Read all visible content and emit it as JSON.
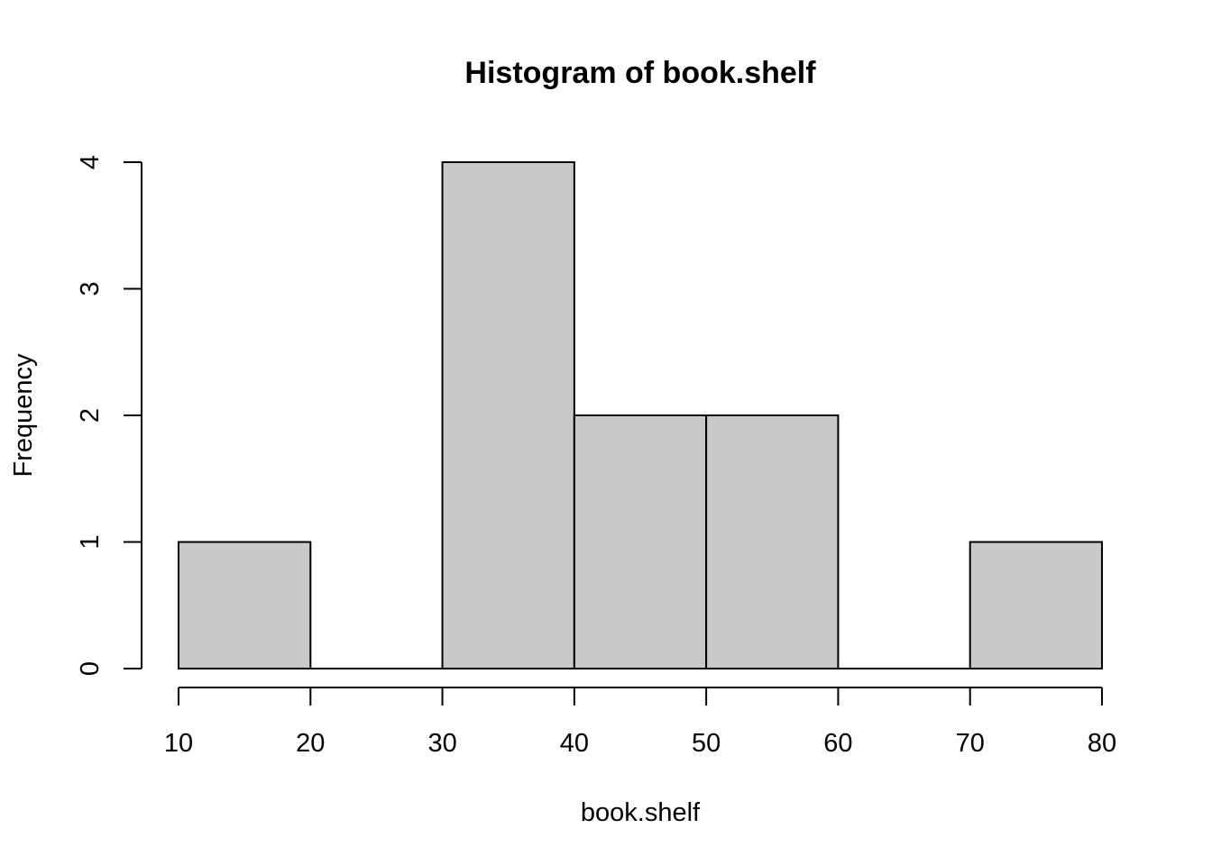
{
  "chart_data": {
    "type": "bar",
    "title": "Histogram of book.shelf",
    "xlabel": "book.shelf",
    "ylabel": "Frequency",
    "bins": [
      {
        "start": 10,
        "end": 20,
        "count": 1
      },
      {
        "start": 20,
        "end": 30,
        "count": 0
      },
      {
        "start": 30,
        "end": 40,
        "count": 4
      },
      {
        "start": 40,
        "end": 50,
        "count": 2
      },
      {
        "start": 50,
        "end": 60,
        "count": 2
      },
      {
        "start": 60,
        "end": 70,
        "count": 0
      },
      {
        "start": 70,
        "end": 80,
        "count": 1
      }
    ],
    "xlim": [
      10,
      80
    ],
    "ylim": [
      0,
      4
    ],
    "x_ticks": [
      "10",
      "20",
      "30",
      "40",
      "50",
      "60",
      "70",
      "80"
    ],
    "y_ticks": [
      "0",
      "1",
      "2",
      "3",
      "4"
    ],
    "grid": false,
    "legend": "none",
    "colors": {
      "bar_fill": "#c9c9c9",
      "bar_stroke": "#000000",
      "axis": "#000000"
    }
  }
}
